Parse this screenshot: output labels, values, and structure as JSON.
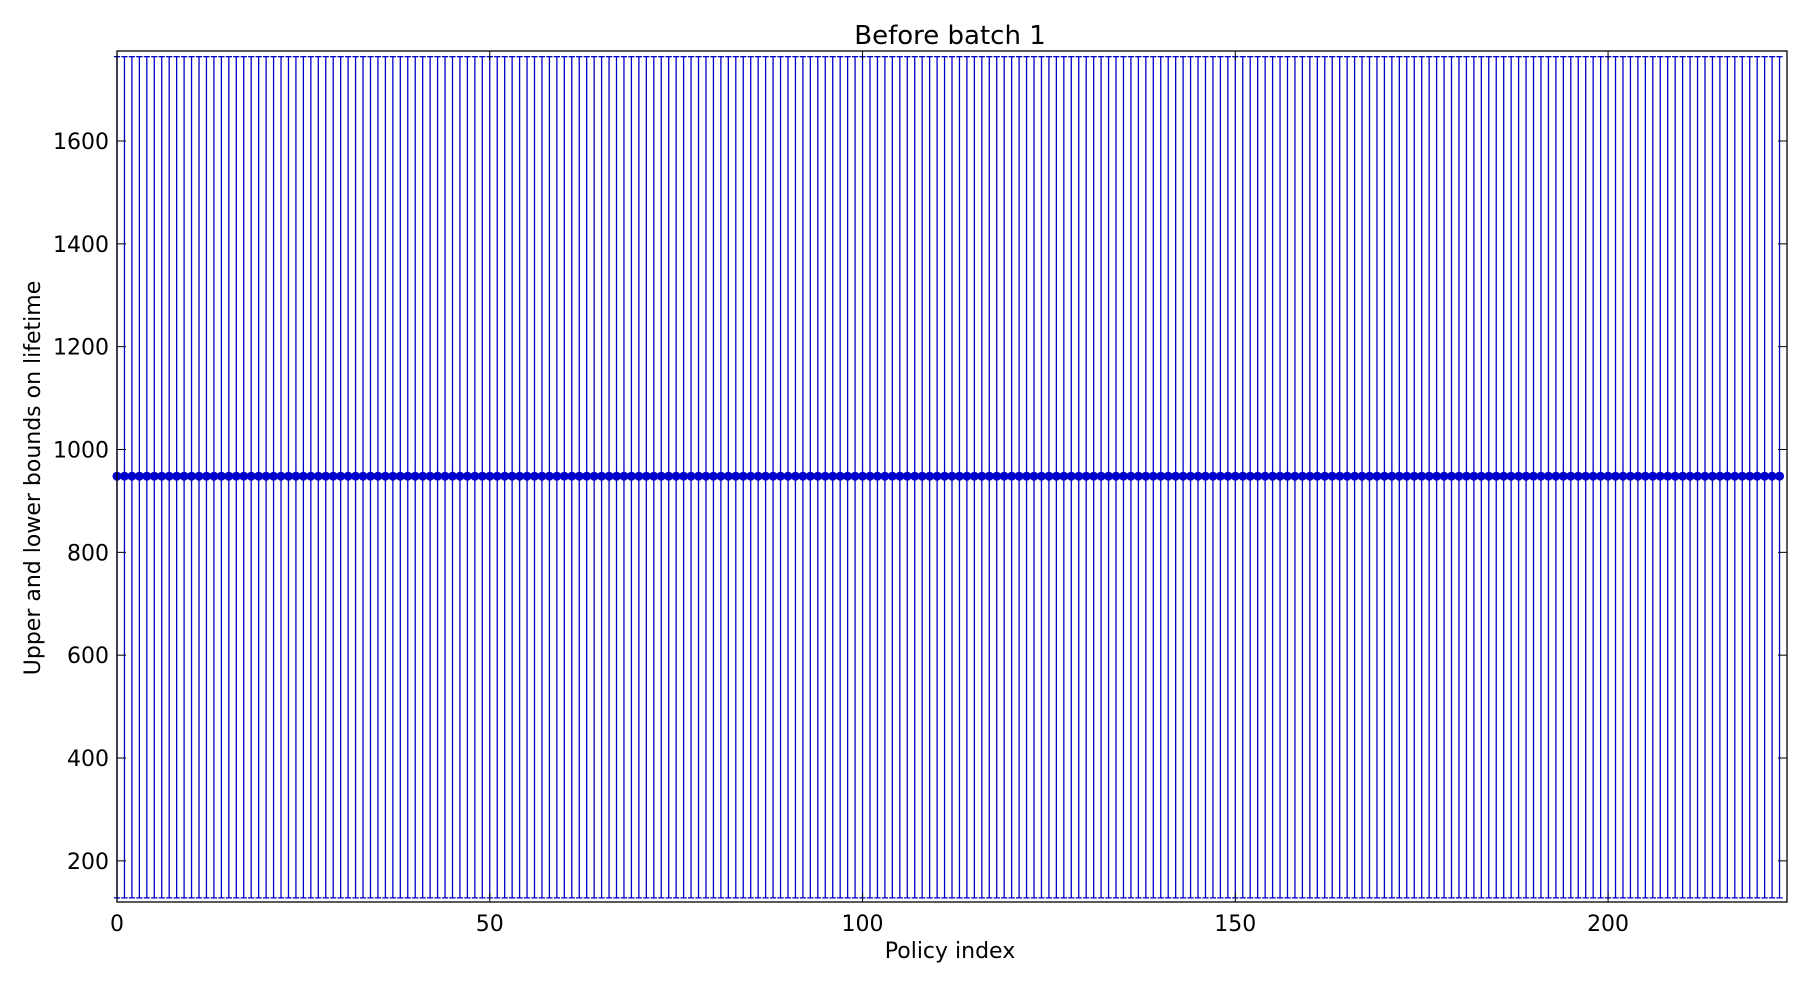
{
  "chart_data": {
    "type": "scatter",
    "title": "Before batch 1",
    "xlabel": "Policy index",
    "ylabel": "Upper and lower bounds on lifetime",
    "xlim": [
      0,
      224
    ],
    "ylim": [
      120,
      1775
    ],
    "xticks": [
      0,
      50,
      100,
      150,
      200
    ],
    "yticks": [
      200,
      400,
      600,
      800,
      1000,
      1200,
      1400,
      1600
    ],
    "grid": false,
    "legend": "none",
    "series": [
      {
        "x_start": 0,
        "x_end": 223,
        "x_step": 1,
        "point_value": 948,
        "lower_bound": 128,
        "upper_bound": 1764,
        "marker": "circle",
        "color": "#0000cc"
      }
    ]
  }
}
